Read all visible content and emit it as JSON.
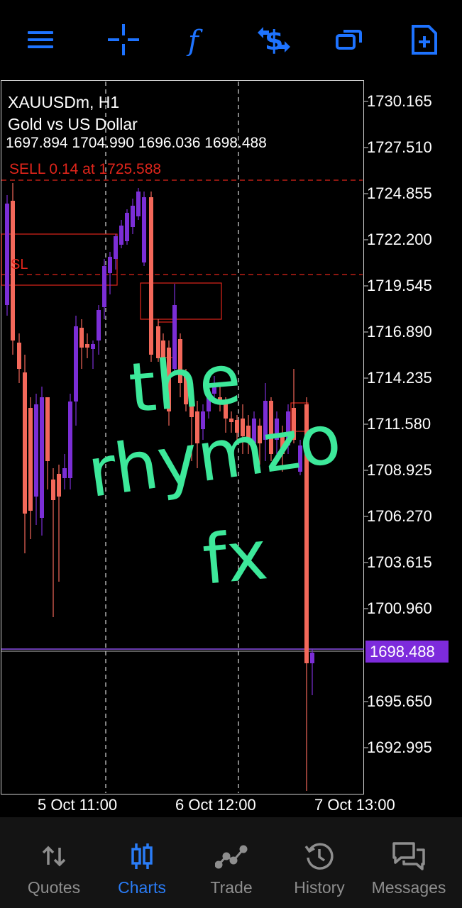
{
  "toolbar": {
    "icons": [
      "menu-icon",
      "crosshair-icon",
      "indicators-icon",
      "trade-dollar-icon",
      "timeframe-icon",
      "new-document-icon"
    ],
    "accent": "#1e73ff"
  },
  "chart": {
    "symbol": "XAUUSDm, H1",
    "description": "Gold vs US Dollar",
    "ohlc": "1697.894 1704.990 1696.036 1698.488",
    "order_label": "SELL 0.14 at 1725.588",
    "sl_label": "SL",
    "current_price": "1698.488",
    "price_axis": [
      "1730.165",
      "1727.510",
      "1724.855",
      "1722.200",
      "1719.545",
      "1716.890",
      "1714.235",
      "1711.580",
      "1708.925",
      "1706.270",
      "1703.615",
      "1700.960",
      "1695.650",
      "1692.995"
    ],
    "time_axis": [
      "5 Oct 11:00",
      "6 Oct 12:00",
      "7 Oct 13:00"
    ],
    "watermark": [
      "the",
      "rhymzo",
      "fx"
    ],
    "colors": {
      "bull": "#7b2ed6",
      "bear": "#f3685a",
      "order": "#e0251b",
      "current": "#7d2bdc",
      "watermark": "#3de89a"
    }
  },
  "nav": {
    "items": [
      {
        "label": "Quotes",
        "icon": "quotes-icon"
      },
      {
        "label": "Charts",
        "icon": "charts-icon",
        "active": true
      },
      {
        "label": "Trade",
        "icon": "trade-icon"
      },
      {
        "label": "History",
        "icon": "history-icon"
      },
      {
        "label": "Messages",
        "icon": "messages-icon"
      }
    ]
  }
}
